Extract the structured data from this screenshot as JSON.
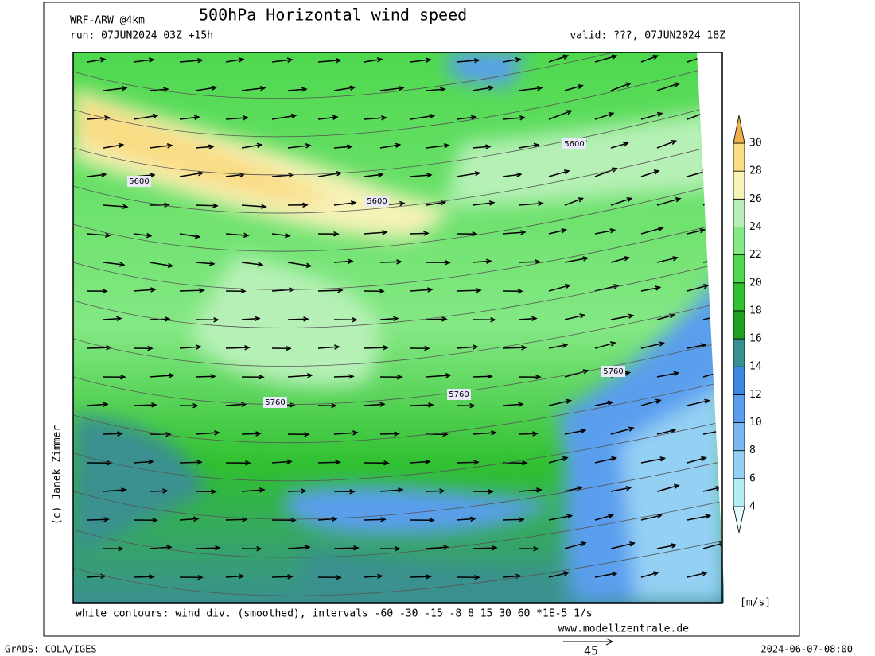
{
  "header": {
    "model": "WRF-ARW @4km",
    "title": "500hPa Horizontal wind speed",
    "run": "run: 07JUN2024 03Z +15h",
    "valid": "valid: ???, 07JUN2024 18Z"
  },
  "map": {
    "contour_labels": [
      "5600",
      "5600",
      "5600",
      "5760",
      "5760",
      "5760"
    ]
  },
  "colorbar": {
    "ticks": [
      4,
      6,
      8,
      10,
      12,
      14,
      16,
      18,
      20,
      22,
      24,
      26,
      28,
      30
    ],
    "colors": [
      "#e4fcfc",
      "#b4ecf6",
      "#94d0f4",
      "#78b6f0",
      "#5a9eee",
      "#3c88e2",
      "#3a9090",
      "#20a020",
      "#30c030",
      "#4ed84e",
      "#84e884",
      "#b6f0b6",
      "#f6f2b8",
      "#fadc84",
      "#f0b048"
    ],
    "unit": "[m/s]"
  },
  "footer": {
    "note": "white contours: wind div. (smoothed), intervals -60 -30 -15 -8 8 15 30 60 *1E-5 1/s",
    "website": "www.modellzentrale.de",
    "credit": "(c) Janek Zimmer",
    "software": "GrADS: COLA/IGES",
    "arrow_scale": "45",
    "timestamp": "2024-06-07-08:00"
  }
}
